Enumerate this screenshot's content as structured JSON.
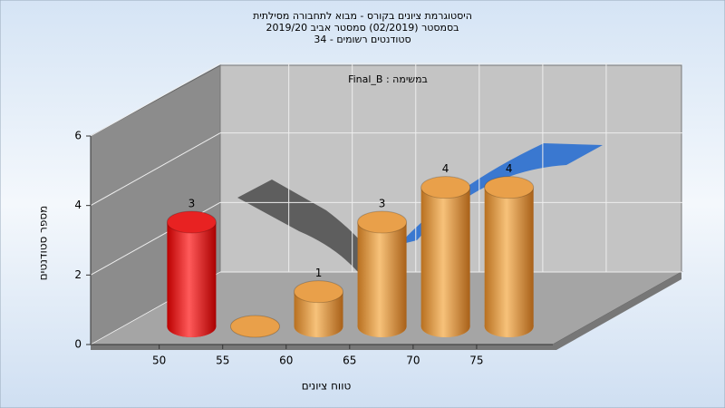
{
  "chart_data": {
    "type": "bar3d",
    "title": "היסטוגרמת ציונים בקורס - מבוא לתחבורה מסילתית",
    "subtitle": "בסמסטר  (02/2019)  סמסטר אביב 2019/20",
    "subtitle2": "סטודנטים רשומים - 34",
    "annotation": "Final_B : במשימה",
    "x_label": "טווח ציונים",
    "y_label": "מספר סטודנטים",
    "x": [
      50,
      55,
      60,
      65,
      70,
      75
    ],
    "values": [
      3,
      0,
      1,
      3,
      4,
      4
    ],
    "colors": [
      "#e82222",
      "#e9a04a",
      "#e9a04a",
      "#e9a04a",
      "#e9a04a",
      "#e9a04a"
    ],
    "xlim": [
      44.6,
      81
    ],
    "xticks": [
      50,
      55,
      60,
      65,
      70,
      75
    ],
    "ylim": [
      0,
      6
    ],
    "yticks": [
      0,
      2,
      4,
      6
    ],
    "grid": true
  }
}
